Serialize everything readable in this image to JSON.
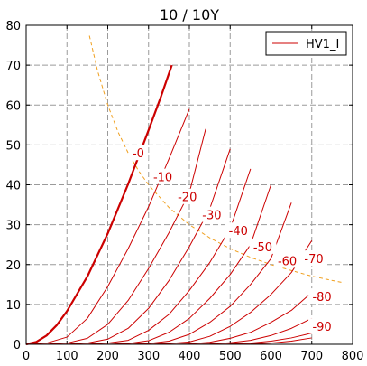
{
  "chart_data": {
    "type": "line",
    "title": "10 / 10Y",
    "xlim": [
      0,
      800
    ],
    "ylim": [
      0,
      80
    ],
    "x_ticks": [
      0,
      100,
      200,
      300,
      400,
      500,
      600,
      700,
      800
    ],
    "y_ticks": [
      0,
      10,
      20,
      30,
      40,
      50,
      60,
      70,
      80
    ],
    "grid": true,
    "legend": {
      "position": "top-right",
      "entries": [
        "HV1_I"
      ]
    },
    "colors": {
      "curves": "#cc0000",
      "max_power": "#f0a020",
      "axes": "#000000",
      "grid": "#9a9a9a"
    },
    "series": [
      {
        "label": "-0",
        "x": [
          0,
          25,
          50,
          75,
          100,
          150,
          200,
          250,
          300,
          330,
          357
        ],
        "y": [
          0,
          0.6,
          2.2,
          4.8,
          8.3,
          17.0,
          27.8,
          40.2,
          53.7,
          62.0,
          70.0
        ]
      },
      {
        "label": "-10",
        "x": [
          0,
          50,
          100,
          150,
          200,
          250,
          300,
          350,
          400
        ],
        "y": [
          0,
          0.3,
          1.8,
          6.5,
          14.5,
          24.0,
          34.5,
          46.5,
          59.0
        ]
      },
      {
        "label": "-20",
        "x": [
          40,
          100,
          150,
          200,
          250,
          300,
          350,
          400,
          440
        ],
        "y": [
          0,
          0.3,
          1.5,
          5.0,
          11.0,
          19.0,
          28.0,
          38.0,
          54.0
        ]
      },
      {
        "label": "-30",
        "x": [
          90,
          150,
          200,
          250,
          300,
          350,
          400,
          450,
          500
        ],
        "y": [
          0,
          0.3,
          1.3,
          4.0,
          9.0,
          16.0,
          24.5,
          34.0,
          49.0
        ]
      },
      {
        "label": "-40",
        "x": [
          140,
          200,
          250,
          300,
          350,
          400,
          450,
          500,
          550
        ],
        "y": [
          0,
          0.3,
          1.0,
          3.5,
          7.5,
          13.5,
          20.5,
          29.0,
          44.0
        ]
      },
      {
        "label": "-50",
        "x": [
          190,
          250,
          300,
          350,
          400,
          450,
          500,
          550,
          600
        ],
        "y": [
          0,
          0.2,
          0.9,
          3.0,
          6.5,
          11.5,
          17.5,
          25.0,
          40.0
        ]
      },
      {
        "label": "-60",
        "x": [
          240,
          300,
          350,
          400,
          450,
          500,
          550,
          600,
          650
        ],
        "y": [
          0,
          0.2,
          0.8,
          2.5,
          5.5,
          9.5,
          15.0,
          21.5,
          35.5
        ]
      },
      {
        "label": "-70",
        "x": [
          290,
          350,
          400,
          450,
          500,
          550,
          600,
          650,
          700
        ],
        "y": [
          0,
          0.2,
          0.6,
          2.0,
          4.5,
          8.0,
          12.5,
          18.0,
          26.0
        ]
      },
      {
        "label": "-80",
        "x": [
          340,
          400,
          450,
          500,
          550,
          600,
          650,
          700
        ],
        "y": [
          0,
          0.1,
          0.5,
          1.5,
          3.0,
          5.5,
          8.5,
          13.0
        ]
      },
      {
        "label": "-90",
        "x": [
          390,
          450,
          500,
          550,
          600,
          650,
          700
        ],
        "y": [
          0,
          0.1,
          0.4,
          1.0,
          2.2,
          4.0,
          6.5
        ]
      },
      {
        "label": "",
        "x": [
          440,
          500,
          550,
          600,
          650,
          700
        ],
        "y": [
          0,
          0.1,
          0.3,
          0.8,
          1.6,
          2.8
        ]
      },
      {
        "label": "",
        "x": [
          490,
          550,
          600,
          650,
          700
        ],
        "y": [
          0,
          0.1,
          0.3,
          0.8,
          1.6
        ]
      }
    ],
    "max_power_curve": {
      "x": [
        155,
        175,
        200,
        225,
        250,
        275,
        300,
        350,
        400,
        450,
        500,
        550,
        600,
        650,
        700,
        750,
        775
      ],
      "y": [
        77.4,
        68.6,
        60.0,
        53.3,
        48.0,
        43.6,
        40.0,
        34.3,
        30.0,
        26.7,
        24.0,
        21.8,
        20.0,
        18.5,
        17.1,
        16.0,
        15.5
      ]
    },
    "labels": [
      {
        "text": "-0",
        "x": 275,
        "y": 48
      },
      {
        "text": "-10",
        "x": 335,
        "y": 42
      },
      {
        "text": "-20",
        "x": 395,
        "y": 37
      },
      {
        "text": "-30",
        "x": 455,
        "y": 32.5
      },
      {
        "text": "-40",
        "x": 520,
        "y": 28.5
      },
      {
        "text": "-50",
        "x": 580,
        "y": 24.5
      },
      {
        "text": "-60",
        "x": 640,
        "y": 21
      },
      {
        "text": "-70",
        "x": 705,
        "y": 21.5
      },
      {
        "text": "-80",
        "x": 725,
        "y": 12
      },
      {
        "text": "-90",
        "x": 725,
        "y": 4.5
      }
    ]
  }
}
